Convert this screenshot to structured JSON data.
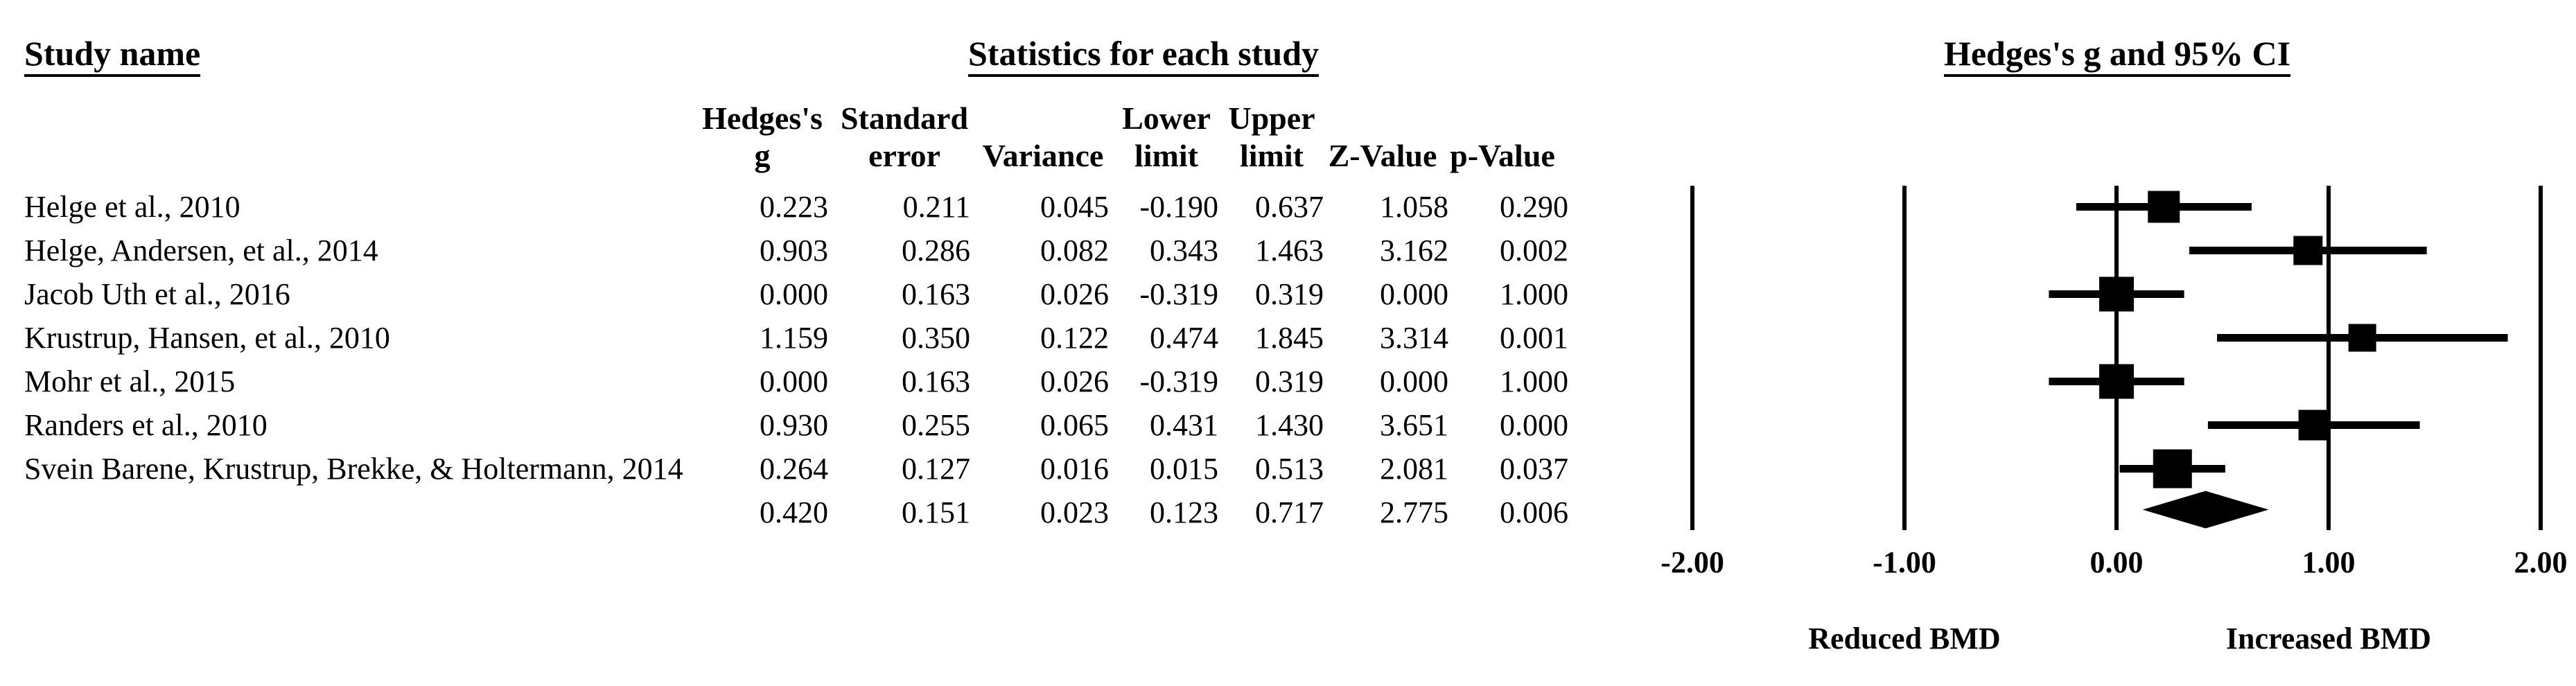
{
  "titles": {
    "study_name": "Study name",
    "stats": "Statistics for each study",
    "plot": "Hedges's g and 95% CI"
  },
  "table": {
    "columns": [
      {
        "line1": "Hedges's",
        "line2": "g"
      },
      {
        "line1": "",
        "line2": "Standard error",
        "stack1": "Standard",
        "stack2": "error"
      },
      {
        "line1": "",
        "line2": "Variance"
      },
      {
        "line1": "Lower",
        "line2": "limit"
      },
      {
        "line1": "Upper",
        "line2": "limit"
      },
      {
        "line1": "",
        "line2": "Z-Value"
      },
      {
        "line1": "",
        "line2": "p-Value"
      }
    ],
    "rows": [
      {
        "name": "Helge et al., 2010",
        "g": "0.223",
        "se": "0.211",
        "variance": "0.045",
        "lower": "-0.190",
        "upper": "0.637",
        "z": "1.058",
        "p": "0.290"
      },
      {
        "name": "Helge, Andersen, et al., 2014",
        "g": "0.903",
        "se": "0.286",
        "variance": "0.082",
        "lower": "0.343",
        "upper": "1.463",
        "z": "3.162",
        "p": "0.002"
      },
      {
        "name": "Jacob Uth et al., 2016",
        "g": "0.000",
        "se": "0.163",
        "variance": "0.026",
        "lower": "-0.319",
        "upper": "0.319",
        "z": "0.000",
        "p": "1.000"
      },
      {
        "name": "Krustrup, Hansen, et al., 2010",
        "g": "1.159",
        "se": "0.350",
        "variance": "0.122",
        "lower": "0.474",
        "upper": "1.845",
        "z": "3.314",
        "p": "0.001"
      },
      {
        "name": "Mohr et al., 2015",
        "g": "0.000",
        "se": "0.163",
        "variance": "0.026",
        "lower": "-0.319",
        "upper": "0.319",
        "z": "0.000",
        "p": "1.000"
      },
      {
        "name": "Randers et al., 2010",
        "g": "0.930",
        "se": "0.255",
        "variance": "0.065",
        "lower": "0.431",
        "upper": "1.430",
        "z": "3.651",
        "p": "0.000"
      },
      {
        "name": "Svein Barene, Krustrup, Brekke, & Holtermann, 2014",
        "g": "0.264",
        "se": "0.127",
        "variance": "0.016",
        "lower": "0.015",
        "upper": "0.513",
        "z": "2.081",
        "p": "0.037"
      },
      {
        "name": "",
        "g": "0.420",
        "se": "0.151",
        "variance": "0.023",
        "lower": "0.123",
        "upper": "0.717",
        "z": "2.775",
        "p": "0.006"
      }
    ]
  },
  "chart_data": {
    "type": "scatter",
    "variant": "forest-plot",
    "title": "Hedges's g and 95% CI",
    "xlim": [
      -2.0,
      2.0
    ],
    "grid": "vertical-lines-at-ticks",
    "x_ticks": [
      {
        "value": -2,
        "label": "-2.00"
      },
      {
        "value": -1,
        "label": "-1.00"
      },
      {
        "value": 0,
        "label": "0.00"
      },
      {
        "value": 1,
        "label": "1.00"
      },
      {
        "value": 2,
        "label": "2.00"
      }
    ],
    "xlabel_left": "Reduced BMD",
    "xlabel_right": "Increased BMD",
    "studies": [
      {
        "name": "Helge et al., 2010",
        "g": 0.223,
        "lower": -0.19,
        "upper": 0.637,
        "marker_size": 46
      },
      {
        "name": "Helge, Andersen, et al., 2014",
        "g": 0.903,
        "lower": 0.343,
        "upper": 1.463,
        "marker_size": 42
      },
      {
        "name": "Jacob Uth et al., 2016",
        "g": 0.0,
        "lower": -0.319,
        "upper": 0.319,
        "marker_size": 50
      },
      {
        "name": "Krustrup, Hansen, et al., 2010",
        "g": 1.159,
        "lower": 0.474,
        "upper": 1.845,
        "marker_size": 40
      },
      {
        "name": "Mohr et al., 2015",
        "g": 0.0,
        "lower": -0.319,
        "upper": 0.319,
        "marker_size": 50
      },
      {
        "name": "Randers et al., 2010",
        "g": 0.93,
        "lower": 0.431,
        "upper": 1.43,
        "marker_size": 44
      },
      {
        "name": "Svein Barene, Krustrup, Brekke, & Holtermann, 2014",
        "g": 0.264,
        "lower": 0.015,
        "upper": 0.513,
        "marker_size": 56
      }
    ],
    "summary": {
      "g": 0.42,
      "lower": 0.123,
      "upper": 0.717,
      "shape": "diamond"
    },
    "colors": {
      "foreground": "#000000",
      "background": "#ffffff"
    }
  }
}
